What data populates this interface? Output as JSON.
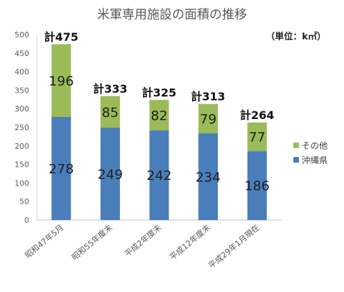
{
  "chart_data": {
    "type": "bar",
    "stacked": true,
    "title": "米軍専用施設の面積の推移",
    "unit_label": "（単位：k㎡）",
    "categories": [
      "昭和47年5月",
      "昭和55年度末",
      "平成2年度末",
      "平成12年度末",
      "平成29年1月現在"
    ],
    "series": [
      {
        "name": "沖縄県",
        "color": "#4a7ebb",
        "values": [
          278,
          249,
          242,
          234,
          186
        ]
      },
      {
        "name": "その他",
        "color": "#9bbb59",
        "values": [
          196,
          85,
          82,
          79,
          77
        ]
      }
    ],
    "totals": [
      "計475",
      "計333",
      "計325",
      "計313",
      "計264"
    ],
    "ylim": [
      0,
      500
    ],
    "yticks": [
      0,
      50,
      100,
      150,
      200,
      250,
      300,
      350,
      400,
      450,
      500
    ],
    "grid": false,
    "legend": "right",
    "legend_order": [
      "その他",
      "沖縄県"
    ]
  }
}
